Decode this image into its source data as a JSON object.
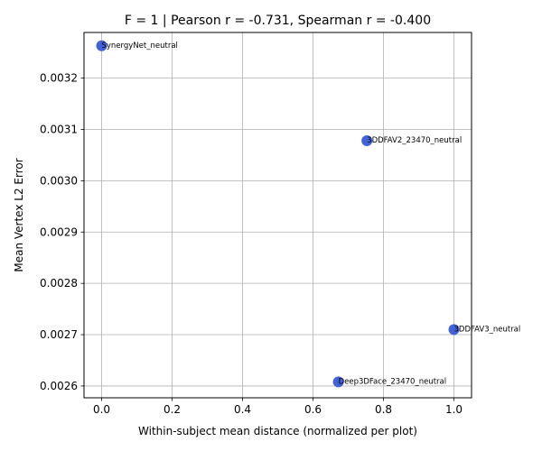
{
  "chart_data": {
    "type": "scatter",
    "title": "F = 1 | Pearson r = -0.731, Spearman r = -0.400",
    "xlabel": "Within-subject mean distance (normalized per plot)",
    "ylabel": "Mean Vertex L2 Error",
    "xlim": [
      -0.05,
      1.05
    ],
    "ylim": [
      0.002577,
      0.003289
    ],
    "xticks": [
      0.0,
      0.2,
      0.4,
      0.6,
      0.8,
      1.0
    ],
    "xtick_labels": [
      "0.0",
      "0.2",
      "0.4",
      "0.6",
      "0.8",
      "1.0"
    ],
    "yticks": [
      0.0026,
      0.0027,
      0.0028,
      0.0029,
      0.003,
      0.0031,
      0.0032
    ],
    "ytick_labels": [
      "0.0026",
      "0.0027",
      "0.0028",
      "0.0029",
      "0.0030",
      "0.0031",
      "0.0032"
    ],
    "grid": true,
    "marker_color": "#4263d8",
    "points": [
      {
        "x": 0.0,
        "y": 0.003263,
        "label": "SynergyNet_neutral"
      },
      {
        "x": 0.753,
        "y": 0.003078,
        "label": "3DDFAV2_23470_neutral"
      },
      {
        "x": 1.0,
        "y": 0.00271,
        "label": "3DDFAV3_neutral"
      },
      {
        "x": 0.672,
        "y": 0.002608,
        "label": "Deep3DFace_23470_neutral"
      }
    ]
  }
}
